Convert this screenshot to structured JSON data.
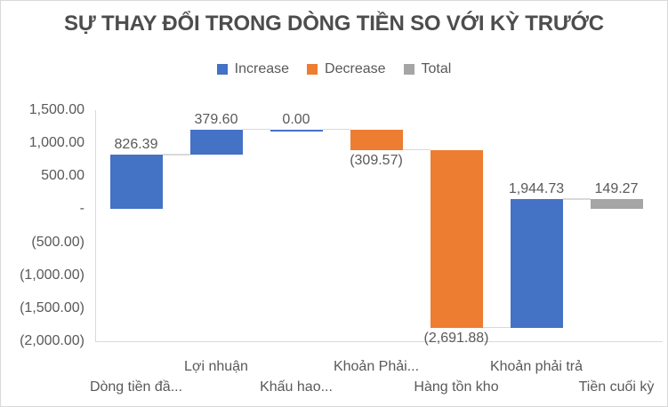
{
  "chart_data": {
    "type": "bar",
    "subtype": "waterfall",
    "title": "SỰ THAY ĐỔI TRONG DÒNG TIỀN SO VỚI KỲ TRƯỚC",
    "legend_position": "top",
    "grid": false,
    "legend": [
      {
        "label": "Increase",
        "kind": "increase",
        "color": "#4472C4"
      },
      {
        "label": "Decrease",
        "kind": "decrease",
        "color": "#ED7D31"
      },
      {
        "label": "Total",
        "kind": "total",
        "color": "#A5A5A5"
      }
    ],
    "colors": {
      "increase": "#4472C4",
      "decrease": "#ED7D31",
      "total": "#A5A5A5"
    },
    "categories": [
      "Dòng tiền đầ...",
      "Lợi nhuận",
      "Khấu hao...",
      "Khoản Phải...",
      "Hàng tồn kho",
      "Khoản phải trả",
      "Tiền cuối kỳ"
    ],
    "values": [
      826.39,
      379.6,
      0.0,
      -309.57,
      -2691.88,
      1944.73,
      149.27
    ],
    "kinds": [
      "increase",
      "increase",
      "increase",
      "decrease",
      "decrease",
      "increase",
      "total"
    ],
    "labels": [
      "826.39",
      "379.60",
      "0.00",
      "(309.57)",
      "(2,691.88)",
      "1,944.73",
      "149.27"
    ],
    "y_axis": {
      "min": -2000,
      "max": 1500,
      "step": 500,
      "ticks": [
        {
          "value": 1500,
          "label": "1,500.00"
        },
        {
          "value": 1000,
          "label": "1,000.00"
        },
        {
          "value": 500,
          "label": "500.00"
        },
        {
          "value": 0,
          "label": "-"
        },
        {
          "value": -500,
          "label": "(500.00)"
        },
        {
          "value": -1000,
          "label": "(1,000.00)"
        },
        {
          "value": -1500,
          "label": "(1,500.00)"
        },
        {
          "value": -2000,
          "label": "(2,000.00)"
        }
      ]
    },
    "connector_color": "#d9d9d9",
    "axis_line_color": "#d9d9d9",
    "text_color": "#595959",
    "title_color": "#4d4d4d"
  }
}
